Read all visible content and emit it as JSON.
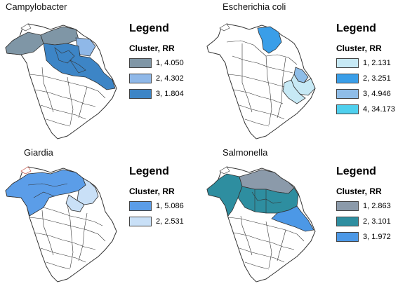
{
  "panels": [
    {
      "title": "Campylobacter",
      "legend_title": "Legend",
      "legend_subtitle": "Cluster, RR",
      "clusters": [
        {
          "label": "1, 4.050",
          "color": "#7f96a6"
        },
        {
          "label": "2, 4.302",
          "color": "#8fb8e8"
        },
        {
          "label": "3, 1.804",
          "color": "#3d85c6"
        }
      ]
    },
    {
      "title": "Escherichia coli",
      "legend_title": "Legend",
      "legend_subtitle": "Cluster, RR",
      "clusters": [
        {
          "label": "1, 2.131",
          "color": "#c7e9f5"
        },
        {
          "label": "2, 3.251",
          "color": "#3a9ee8"
        },
        {
          "label": "3, 4.946",
          "color": "#8fbde8"
        },
        {
          "label": "4, 34.173",
          "color": "#4fd0ee"
        }
      ]
    },
    {
      "title": "Giardia",
      "legend_title": "Legend",
      "legend_subtitle": "Cluster, RR",
      "clusters": [
        {
          "label": "1, 5.086",
          "color": "#5b9de8"
        },
        {
          "label": "2, 2.531",
          "color": "#c9e0f7"
        }
      ]
    },
    {
      "title": "Salmonella",
      "legend_title": "Legend",
      "legend_subtitle": "Cluster, RR",
      "clusters": [
        {
          "label": "1, 2.863",
          "color": "#8b9aaa"
        },
        {
          "label": "2, 3.101",
          "color": "#2e8ea0"
        },
        {
          "label": "3, 1.972",
          "color": "#4c98e6"
        }
      ]
    }
  ]
}
